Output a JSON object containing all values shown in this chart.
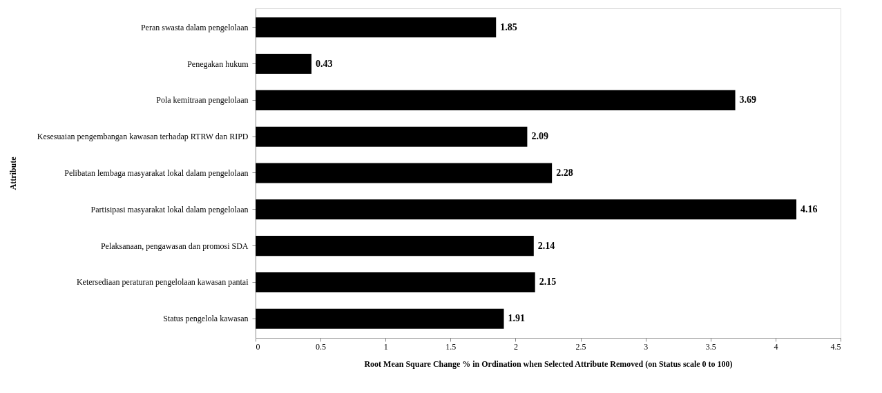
{
  "chart_data": {
    "type": "bar",
    "orientation": "horizontal",
    "xlabel": "Root Mean Square Change % in Ordination  when Selected Attribute Removed (on Status scale 0 to 100)",
    "ylabel": "Attribute",
    "categories": [
      "Peran swasta dalam pengelolaan",
      "Penegakan hukum",
      "Pola kemitraan pengelolaan",
      "Kesesuaian pengembangan kawasan terhadap RTRW dan RIPD",
      "Pelibatan  lembaga masyarakat lokal dalam pengelolaan",
      "Partisipasi masyarakat lokal dalam pengelolaan",
      "Pelaksanaan, pengawasan dan promosi SDA",
      "Ketersediaan peraturan pengelolaan kawasan pantai",
      "Status pengelola kawasan"
    ],
    "values": [
      1.85,
      0.43,
      3.69,
      2.09,
      2.28,
      4.16,
      2.14,
      2.15,
      1.91
    ],
    "color": "#000000",
    "xlim": [
      0,
      4.5
    ],
    "xticks": [
      0,
      0.5,
      1,
      1.5,
      2,
      2.5,
      3,
      3.5,
      4,
      4.5
    ],
    "grid": false,
    "data_labels": true
  }
}
